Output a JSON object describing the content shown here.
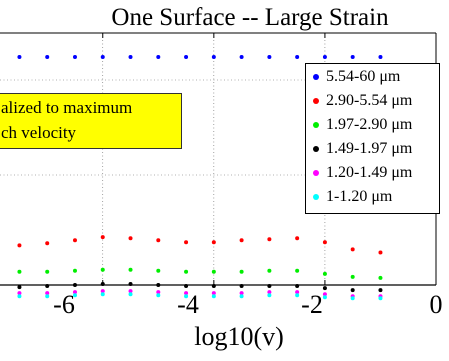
{
  "chart_data": {
    "type": "scatter",
    "title": "One Surface -- Large Strain",
    "xlabel": "log10(v)",
    "ylabel": "",
    "xlim": [
      -7.85,
      0
    ],
    "x_ticks": [
      "-6",
      "-4",
      "-2",
      "0"
    ],
    "grid": true,
    "annotation": [
      "alized to maximum",
      "ch velocity"
    ],
    "legend_position": "top-right",
    "x": [
      -7.5,
      -7.0,
      -6.5,
      -6.0,
      -5.5,
      -5.0,
      -4.5,
      -4.0,
      -3.5,
      -3.0,
      -2.5,
      -2.0,
      -1.5,
      -1.0
    ],
    "series": [
      {
        "name": "5.54-60 μm",
        "color": "#0000ff",
        "values": [
          1.0,
          1.0,
          1.0,
          1.0,
          1.0,
          1.0,
          1.0,
          1.0,
          1.0,
          1.0,
          1.0,
          1.0,
          1.0,
          1.0
        ]
      },
      {
        "name": "2.90-5.54 μm",
        "color": "#ff0000",
        "values": [
          0.815,
          0.817,
          0.82,
          0.823,
          0.822,
          0.82,
          0.818,
          0.818,
          0.82,
          0.821,
          0.822,
          0.818,
          0.811,
          0.808
        ]
      },
      {
        "name": "1.97-2.90 μm",
        "color": "#00ee00",
        "values": [
          0.789,
          0.789,
          0.79,
          0.791,
          0.791,
          0.79,
          0.789,
          0.789,
          0.789,
          0.79,
          0.79,
          0.787,
          0.784,
          0.783
        ]
      },
      {
        "name": "1.49-1.97 μm",
        "color": "#000000",
        "values": [
          0.774,
          0.775,
          0.776,
          0.777,
          0.777,
          0.776,
          0.775,
          0.775,
          0.775,
          0.775,
          0.775,
          0.773,
          0.771,
          0.771
        ]
      },
      {
        "name": "1.20-1.49 μm",
        "color": "#ff00ff",
        "values": [
          0.768,
          0.768,
          0.769,
          0.77,
          0.77,
          0.769,
          0.768,
          0.768,
          0.768,
          0.769,
          0.769,
          0.767,
          0.765,
          0.765
        ]
      },
      {
        "name": "1-1.20 μm",
        "color": "#00ffff",
        "values": [
          0.765,
          0.765,
          0.766,
          0.767,
          0.767,
          0.766,
          0.765,
          0.765,
          0.765,
          0.766,
          0.766,
          0.764,
          0.763,
          0.763
        ]
      }
    ]
  }
}
